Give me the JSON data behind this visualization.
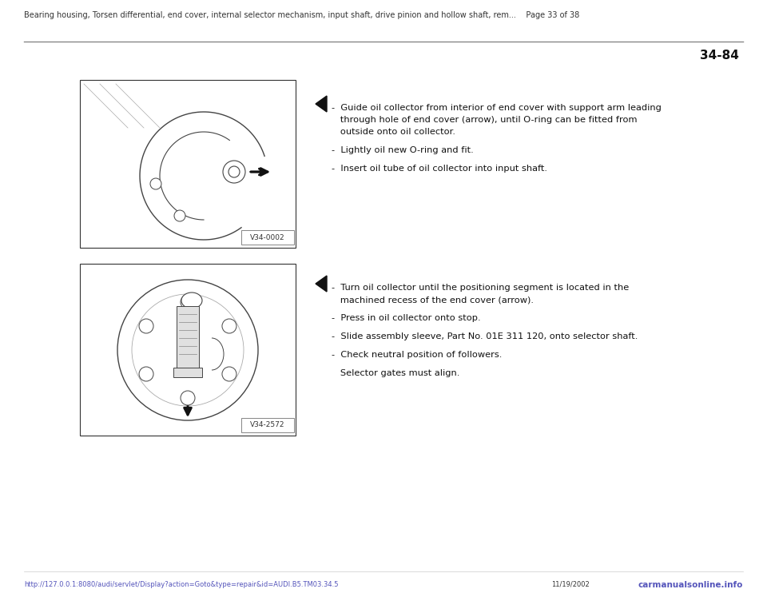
{
  "bg_color": "#ffffff",
  "header_text": "Bearing housing, Torsen differential, end cover, internal selector mechanism, input shaft, drive pinion and hollow shaft, rem...    Page 33 of 38",
  "page_number": "34-84",
  "section1": {
    "image_label": "V34-0002",
    "bullets": [
      "-  Guide oil collector from interior of end cover with support arm leading\n   through hole of end cover (arrow), until O-ring can be fitted from\n   outside onto oil collector.",
      "-  Lightly oil new O-ring and fit.",
      "-  Insert oil tube of oil collector into input shaft."
    ]
  },
  "section2": {
    "image_label": "V34-2572",
    "bullets": [
      "-  Turn oil collector until the positioning segment is located in the\n   machined recess of the end cover (arrow).",
      "-  Press in oil collector onto stop.",
      "-  Slide assembly sleeve, Part No. 01E 311 120, onto selector shaft.",
      "-  Check neutral position of followers.",
      "   Selector gates must align."
    ]
  },
  "footer_url": "http://127.0.0.1:8080/audi/servlet/Display?action=Goto&type=repair&id=AUDI.B5.TM03.34.5",
  "footer_date": "11/19/2002",
  "footer_site": "carmanualsonline.info"
}
